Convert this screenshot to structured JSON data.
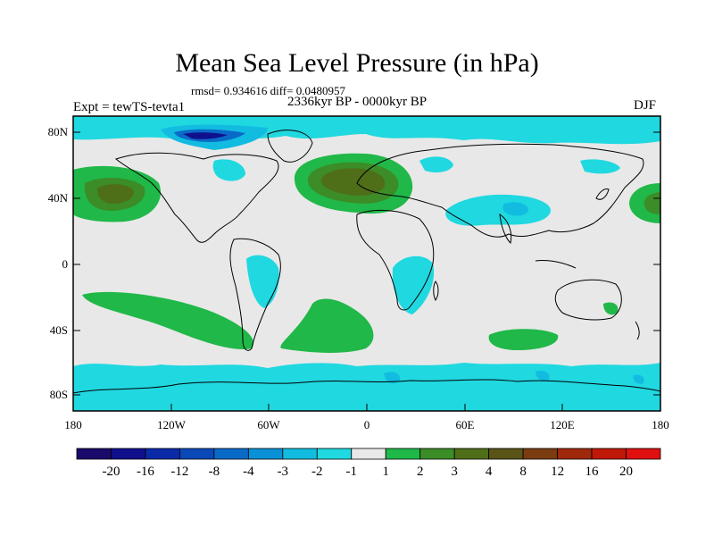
{
  "title": "Mean Sea Level Pressure (in hPa)",
  "stats": "rmsd= 0.934616  diff= 0.0480957",
  "experiment": "Expt = tewTS-tevta1",
  "period": "2336kyr BP - 0000kyr BP",
  "season": "DJF",
  "lat_labels": [
    "80N",
    "40N",
    "0",
    "40S",
    "80S"
  ],
  "lon_labels": [
    "180",
    "120W",
    "60W",
    "0",
    "60E",
    "120E",
    "180"
  ],
  "colorbar": {
    "labels": [
      "-20",
      "-16",
      "-12",
      "-8",
      "-4",
      "-3",
      "-2",
      "-1",
      "1",
      "2",
      "3",
      "4",
      "8",
      "12",
      "16",
      "20"
    ],
    "colors": [
      "#1a0a6b",
      "#10108c",
      "#0a2aa8",
      "#0a48b8",
      "#0a6ac8",
      "#0a90d6",
      "#12bce0",
      "#20d8e0",
      "#e8e8e8",
      "#20b848",
      "#3c8c28",
      "#4f6e18",
      "#5a5418",
      "#7a3c10",
      "#a0280a",
      "#c01808",
      "#e01010"
    ]
  },
  "palette": {
    "neutral": "#e8e8e8",
    "low": "#20d8e0",
    "low_mid": "#12bce0",
    "low_strong": "#0a6ac8",
    "low_strongest": "#10108c",
    "high": "#20b848",
    "high_mid": "#3c8c28",
    "high_strong": "#4f6e18",
    "high_strongest": "#5a5418"
  }
}
